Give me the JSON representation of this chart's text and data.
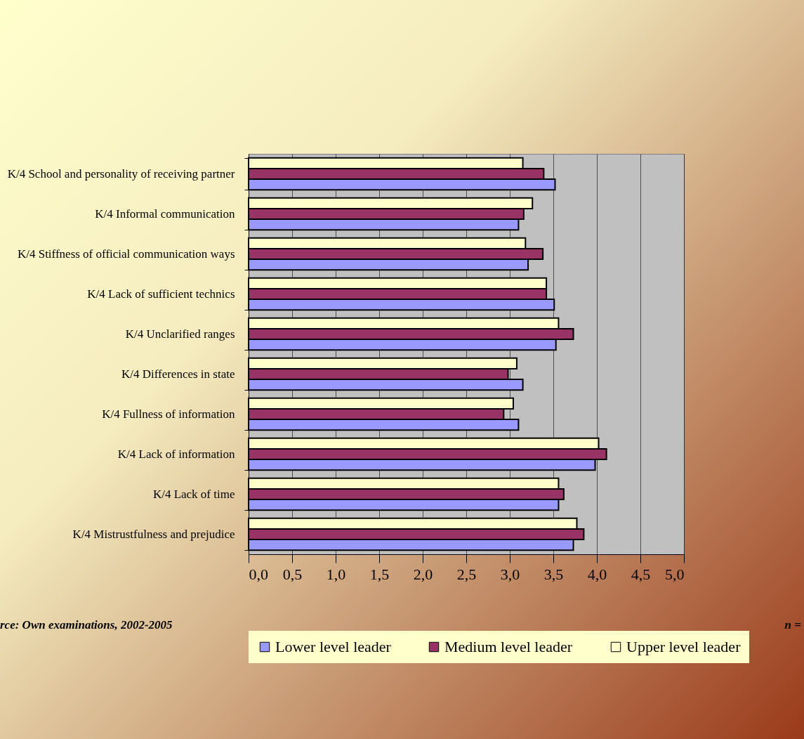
{
  "chart_data": {
    "type": "bar",
    "orientation": "horizontal",
    "categories": [
      "K/4 School and personality of receiving partner",
      "K/4 Informal communication",
      "K/4 Stiffness of official communication ways",
      "K/4 Lack of sufficient technics",
      "K/4 Unclarified ranges",
      "K/4 Differences in state",
      "K/4 Fullness of information",
      "K/4 Lack of information",
      "K/4 Lack of time",
      "K/4 Mistrustfulness and prejudice"
    ],
    "series": [
      {
        "name": "Lower level leader",
        "color": "#9999ff",
        "values": [
          3.52,
          3.1,
          3.21,
          3.51,
          3.53,
          3.15,
          3.1,
          3.98,
          3.56,
          3.73
        ]
      },
      {
        "name": "Medium level leader",
        "color": "#993366",
        "values": [
          3.39,
          3.16,
          3.38,
          3.42,
          3.73,
          2.98,
          2.93,
          4.11,
          3.62,
          3.85
        ]
      },
      {
        "name": "Upper level leader",
        "color": "#ffffcc",
        "values": [
          3.15,
          3.26,
          3.18,
          3.42,
          3.56,
          3.08,
          3.04,
          4.02,
          3.56,
          3.77
        ]
      }
    ],
    "xlim": [
      0,
      5
    ],
    "xticks": [
      {
        "value": 0,
        "label": "0,0"
      },
      {
        "value": 0.5,
        "label": "0,5"
      },
      {
        "value": 1,
        "label": "1,0"
      },
      {
        "value": 1.5,
        "label": "1,5"
      },
      {
        "value": 2,
        "label": "2,0"
      },
      {
        "value": 2.5,
        "label": "2,5"
      },
      {
        "value": 3,
        "label": "3,0"
      },
      {
        "value": 3.5,
        "label": "3,5"
      },
      {
        "value": 4,
        "label": "4,0"
      },
      {
        "value": 4.5,
        "label": "4,5"
      },
      {
        "value": 5,
        "label": "5,0"
      }
    ],
    "grid": "x",
    "legend": "bottom",
    "annotations": [
      "rce: Own examinations, 2002-2005",
      "n ="
    ]
  }
}
